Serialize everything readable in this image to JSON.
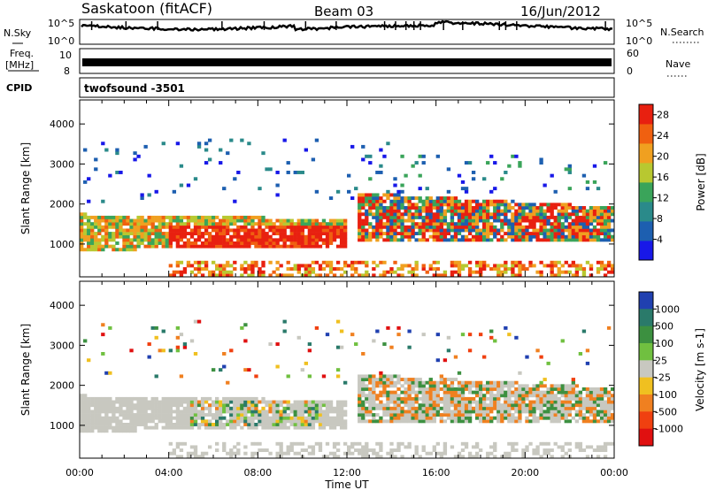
{
  "header": {
    "station": "Saskatoon (fitACF)",
    "beam": "Beam 03",
    "date": "16/Jun/2012"
  },
  "strip_nsky": {
    "left_label": "N.Sky",
    "right_label": "N.Search",
    "left_ticks": [
      "10^5",
      "10^0"
    ],
    "right_ticks": [
      "10^5",
      "10^0"
    ]
  },
  "strip_freq": {
    "left_label_1": "Freq.",
    "left_label_2": "[MHz]",
    "left_ticks": [
      "10",
      "8"
    ],
    "right_ticks": [
      "60",
      "0"
    ],
    "right_label": "Nave"
  },
  "strip_cpid": {
    "left_label": "CPID",
    "program": "twofsound -3501"
  },
  "colors": {
    "power_scale": [
      "#1818e8",
      "#1d5fb0",
      "#2a8a8a",
      "#3aa45a",
      "#b8c830",
      "#f0a020",
      "#f06010",
      "#e82010"
    ],
    "velocity_scale": [
      "#2040b0",
      "#2a7a6a",
      "#3c9040",
      "#70c040",
      "#c8c8c0",
      "#f0c020",
      "#f08020",
      "#f04010",
      "#e01010"
    ]
  },
  "chart_data": [
    {
      "type": "heatmap",
      "title": "",
      "xlabel": "Time UT",
      "ylabel": "Slant Range [km]",
      "xlim": [
        "00:00",
        "24:00"
      ],
      "ylim": [
        180,
        4600
      ],
      "x_ticks": [
        "00:00",
        "04:00",
        "08:00",
        "12:00",
        "16:00",
        "20:00",
        "00:00"
      ],
      "y_ticks": [
        1000,
        2000,
        3000,
        4000
      ],
      "colorbar": {
        "label": "Power [dB]",
        "ticks": [
          4,
          8,
          12,
          16,
          20,
          24,
          28
        ],
        "range": [
          0,
          30
        ]
      },
      "features": [
        {
          "name": "main band",
          "hours": [
            0,
            12
          ],
          "range_km": [
            900,
            1700
          ],
          "power_db": 24
        },
        {
          "name": "secondary band",
          "hours": [
            12.5,
            24
          ],
          "range_km": [
            1100,
            2300
          ],
          "power_db": 20
        },
        {
          "name": "low-range echoes",
          "hours": [
            4,
            24
          ],
          "range_km": [
            200,
            600
          ],
          "power_db": 18
        },
        {
          "name": "sporadic high-range scatter",
          "hours": [
            0,
            14
          ],
          "range_km": [
            2000,
            3600
          ],
          "power_db": 6
        }
      ]
    },
    {
      "type": "heatmap",
      "title": "",
      "xlabel": "Time UT",
      "ylabel": "Slant Range [km]",
      "xlim": [
        "00:00",
        "24:00"
      ],
      "ylim": [
        180,
        4600
      ],
      "x_ticks": [
        "00:00",
        "04:00",
        "08:00",
        "12:00",
        "16:00",
        "20:00",
        "00:00"
      ],
      "y_ticks": [
        1000,
        2000,
        3000,
        4000
      ],
      "colorbar": {
        "label": "Velocity [m s-1]",
        "ticks": [
          "1000",
          "500",
          "100",
          "25",
          "-25",
          "-100",
          "-500",
          "-1000"
        ]
      },
      "features": [
        {
          "name": "ground scatter band",
          "hours": [
            0,
            12
          ],
          "range_km": [
            900,
            1700
          ],
          "velocity_ms": 0
        },
        {
          "name": "ionospheric scatter",
          "hours": [
            5,
            11
          ],
          "range_km": [
            1000,
            1600
          ],
          "velocity_ms": 150
        },
        {
          "name": "receding echoes",
          "hours": [
            13,
            24
          ],
          "range_km": [
            1200,
            2300
          ],
          "velocity_ms": -300
        }
      ]
    }
  ]
}
